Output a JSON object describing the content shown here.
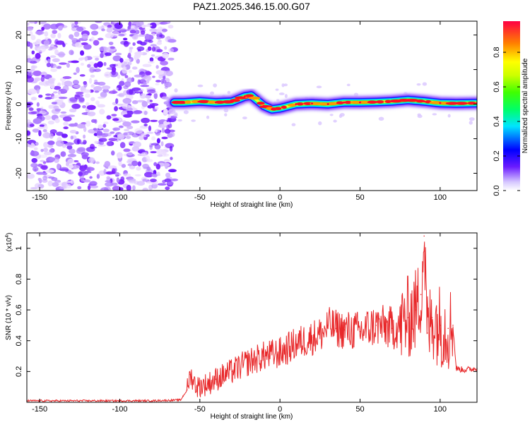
{
  "title": "PAZ1.2025.346.15.00.G07",
  "chart_data": [
    {
      "type": "heatmap",
      "xlabel": "Height of straight line (km)",
      "ylabel": "Frequency (Hz)",
      "xlim": [
        -158,
        123
      ],
      "ylim": [
        -25,
        24
      ],
      "xticks": [
        -150,
        -100,
        -50,
        0,
        50,
        100
      ],
      "xtick_labels": [
        "-150",
        "-100",
        "-50",
        "0",
        "50",
        "100"
      ],
      "yticks": [
        -20,
        -10,
        0,
        10,
        20
      ],
      "ytick_labels": [
        "-20",
        "-10",
        "0",
        "10",
        "20"
      ],
      "noise_region_x": [
        -158,
        -66
      ],
      "signal_region_x": [
        -66,
        123
      ],
      "signal_track": {
        "x": [
          -66,
          -60,
          -50,
          -40,
          -30,
          -22,
          -18,
          -10,
          -5,
          0,
          10,
          20,
          30,
          40,
          50,
          60,
          70,
          80,
          90,
          100,
          110,
          123
        ],
        "freq": [
          0.5,
          0.5,
          0.8,
          0.5,
          0.7,
          2.2,
          2.5,
          -0.5,
          -1.5,
          -1.2,
          0,
          0.2,
          0,
          0.5,
          0.5,
          0.6,
          0.8,
          1.2,
          0.8,
          0.3,
          0.2,
          0.3
        ]
      }
    },
    {
      "type": "line",
      "xlabel": "Height of straight line (km)",
      "ylabel": "SNR (10 * v/v)",
      "scale_label": "(x10",
      "scale_exp": "4",
      "scale_close": ")",
      "xlim": [
        -158,
        123
      ],
      "ylim": [
        0,
        1.1
      ],
      "xticks": [
        -150,
        -100,
        -50,
        0,
        50,
        100
      ],
      "xtick_labels": [
        "-150",
        "-100",
        "-50",
        "0",
        "50",
        "100"
      ],
      "yticks": [
        0.2,
        0.4,
        0.6,
        0.8,
        1
      ],
      "ytick_labels": [
        "0.2",
        "0.4",
        "0.6",
        "0.8",
        "1"
      ],
      "series": [
        {
          "name": "SNR",
          "color": "#e8282a",
          "x": [
            -158,
            -140,
            -120,
            -100,
            -80,
            -62,
            -58,
            -56,
            -52,
            -45,
            -40,
            -30,
            -20,
            -10,
            0,
            10,
            20,
            27,
            30,
            35,
            40,
            50,
            60,
            70,
            75,
            80,
            85,
            88,
            90,
            92,
            95,
            100,
            105,
            108,
            110,
            115,
            123
          ],
          "y": [
            0.01,
            0.01,
            0.01,
            0.01,
            0.01,
            0.015,
            0.08,
            0.18,
            0.1,
            0.12,
            0.15,
            0.2,
            0.26,
            0.3,
            0.32,
            0.38,
            0.42,
            0.45,
            0.5,
            0.48,
            0.47,
            0.46,
            0.5,
            0.48,
            0.5,
            0.55,
            0.6,
            0.7,
            1.08,
            0.45,
            0.55,
            0.5,
            0.48,
            0.5,
            0.22,
            0.21,
            0.22
          ]
        }
      ]
    }
  ],
  "colorbar": {
    "label": "Normalized spectral amplitude",
    "range": [
      0,
      0.98
    ],
    "ticks": [
      0,
      0.2,
      0.4,
      0.6,
      0.8
    ],
    "tick_labels": [
      "0.0",
      "0.2",
      "0.4",
      "0.6",
      "0.8"
    ]
  }
}
